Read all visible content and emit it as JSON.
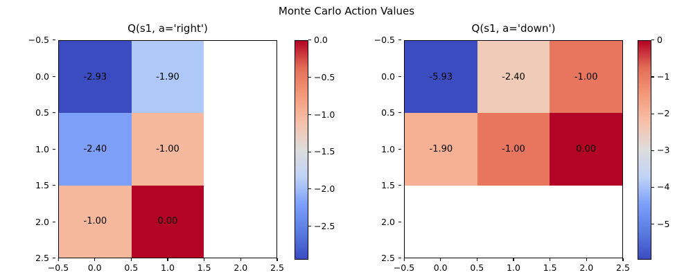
{
  "figure": {
    "suptitle": "Monte Carlo Action Values",
    "background": "#ffffff"
  },
  "chart_data": [
    {
      "type": "heatmap",
      "title": "Q(s1, a='right')",
      "colormap": "coolwarm",
      "grid_shape": [
        3,
        3
      ],
      "x_ticks": [
        "−0.5",
        "0.0",
        "0.5",
        "1.0",
        "1.5",
        "2.0",
        "2.5"
      ],
      "y_ticks": [
        "−0.5",
        "0.0",
        "0.5",
        "1.0",
        "1.5",
        "2.0",
        "2.5"
      ],
      "values": [
        [
          -2.93,
          -1.9,
          null
        ],
        [
          -2.4,
          -1.0,
          null
        ],
        [
          -1.0,
          0.0,
          null
        ]
      ],
      "labels": [
        [
          "-2.93",
          "-1.90",
          ""
        ],
        [
          "-2.40",
          "-1.00",
          ""
        ],
        [
          "-1.00",
          "0.00",
          ""
        ]
      ],
      "cell_colors": [
        [
          "#3b4cc0",
          "#aec8f8",
          "#ffffff"
        ],
        [
          "#7d9ff8",
          "#f5b89c",
          "#ffffff"
        ],
        [
          "#f5b89c",
          "#b40426",
          "#ffffff"
        ]
      ],
      "colorbar": {
        "vmin": -2.93,
        "vmax": 0,
        "ticks": [
          "0.0",
          "−0.5",
          "−1.0",
          "−1.5",
          "−2.0",
          "−2.5"
        ],
        "tick_values": [
          0,
          -0.5,
          -1.0,
          -1.5,
          -2.0,
          -2.5
        ]
      },
      "colormap_stops": [
        "#b40426",
        "#e36e57",
        "#f49a7b",
        "#f6c1aa",
        "#dddddd",
        "#bfd3f6",
        "#7b9ff9",
        "#597de0",
        "#3b4cc0"
      ]
    },
    {
      "type": "heatmap",
      "title": "Q(s1, a='down')",
      "colormap": "coolwarm",
      "grid_shape": [
        3,
        3
      ],
      "x_ticks": [
        "−0.5",
        "0.0",
        "0.5",
        "1.0",
        "1.5",
        "2.0",
        "2.5"
      ],
      "y_ticks": [
        "−0.5",
        "0.0",
        "0.5",
        "1.0",
        "1.5",
        "2.0",
        "2.5"
      ],
      "values": [
        [
          -5.93,
          -2.4,
          -1.0
        ],
        [
          -1.9,
          -1.0,
          0.0
        ],
        [
          null,
          null,
          null
        ]
      ],
      "labels": [
        [
          "-5.93",
          "-2.40",
          "-1.00"
        ],
        [
          "-1.90",
          "-1.00",
          "0.00"
        ],
        [
          "",
          "",
          ""
        ]
      ],
      "cell_colors": [
        [
          "#3b4cc0",
          "#f0ccb8",
          "#e8765e"
        ],
        [
          "#f6b093",
          "#e8765e",
          "#b40426"
        ],
        [
          "#ffffff",
          "#ffffff",
          "#ffffff"
        ]
      ],
      "colorbar": {
        "vmin": -5.93,
        "vmax": 0,
        "ticks": [
          "0",
          "−1",
          "−2",
          "−3",
          "−4",
          "−5"
        ],
        "tick_values": [
          0,
          -1,
          -2,
          -3,
          -4,
          -5
        ]
      },
      "colormap_stops": [
        "#b40426",
        "#e36e57",
        "#f49a7b",
        "#f6c1aa",
        "#dddddd",
        "#bfd3f6",
        "#7b9ff9",
        "#597de0",
        "#3b4cc0"
      ]
    }
  ]
}
